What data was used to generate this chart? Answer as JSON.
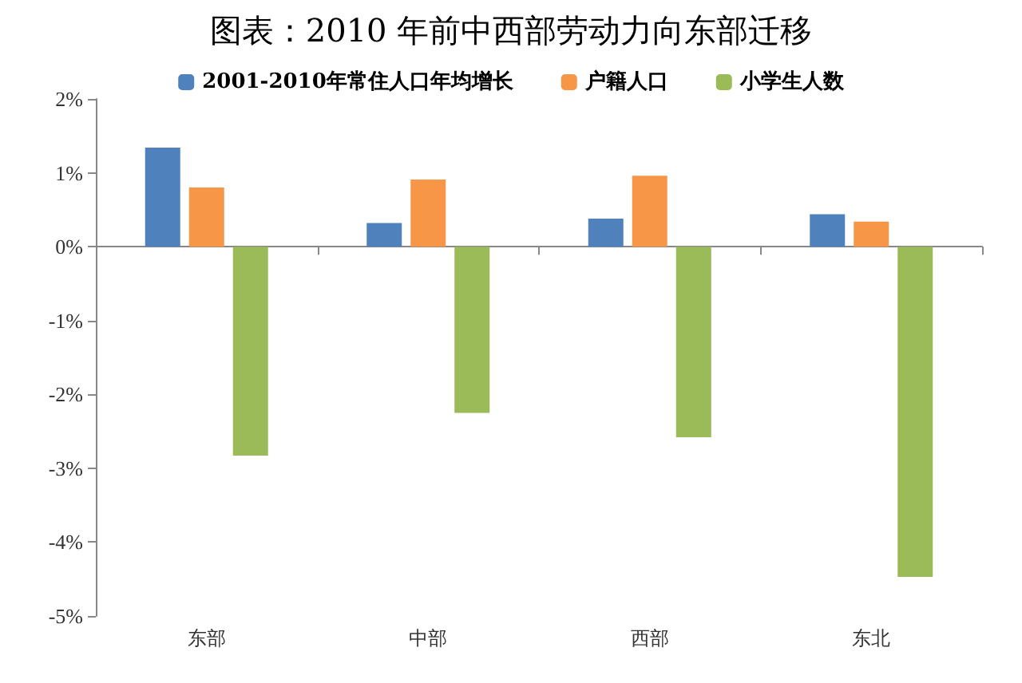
{
  "chart_data": {
    "type": "bar",
    "title": "图表：2010 年前中西部劳动力向东部迁移",
    "categories": [
      "东部",
      "中部",
      "西部",
      "东北"
    ],
    "series": [
      {
        "name": "2001-2010年常住人口年均增长",
        "color": "#4f81bd",
        "values": [
          1.34,
          0.32,
          0.38,
          0.44
        ]
      },
      {
        "name": "户籍人口",
        "color": "#f79646",
        "values": [
          0.8,
          0.91,
          0.96,
          0.34
        ]
      },
      {
        "name": "小学生人数",
        "color": "#9bbb59",
        "values": [
          -2.83,
          -2.25,
          -2.58,
          -4.47
        ]
      }
    ],
    "ylim": [
      -5,
      2
    ],
    "yticks": [
      {
        "value": -5,
        "label": "-5%"
      },
      {
        "value": -4,
        "label": "-4%"
      },
      {
        "value": -3,
        "label": "-3%"
      },
      {
        "value": -2,
        "label": "-2%"
      },
      {
        "value": -1,
        "label": "-1%"
      },
      {
        "value": 0,
        "label": "0%"
      },
      {
        "value": 1,
        "label": "1%"
      },
      {
        "value": 2,
        "label": "2%"
      }
    ],
    "legend": "top"
  }
}
